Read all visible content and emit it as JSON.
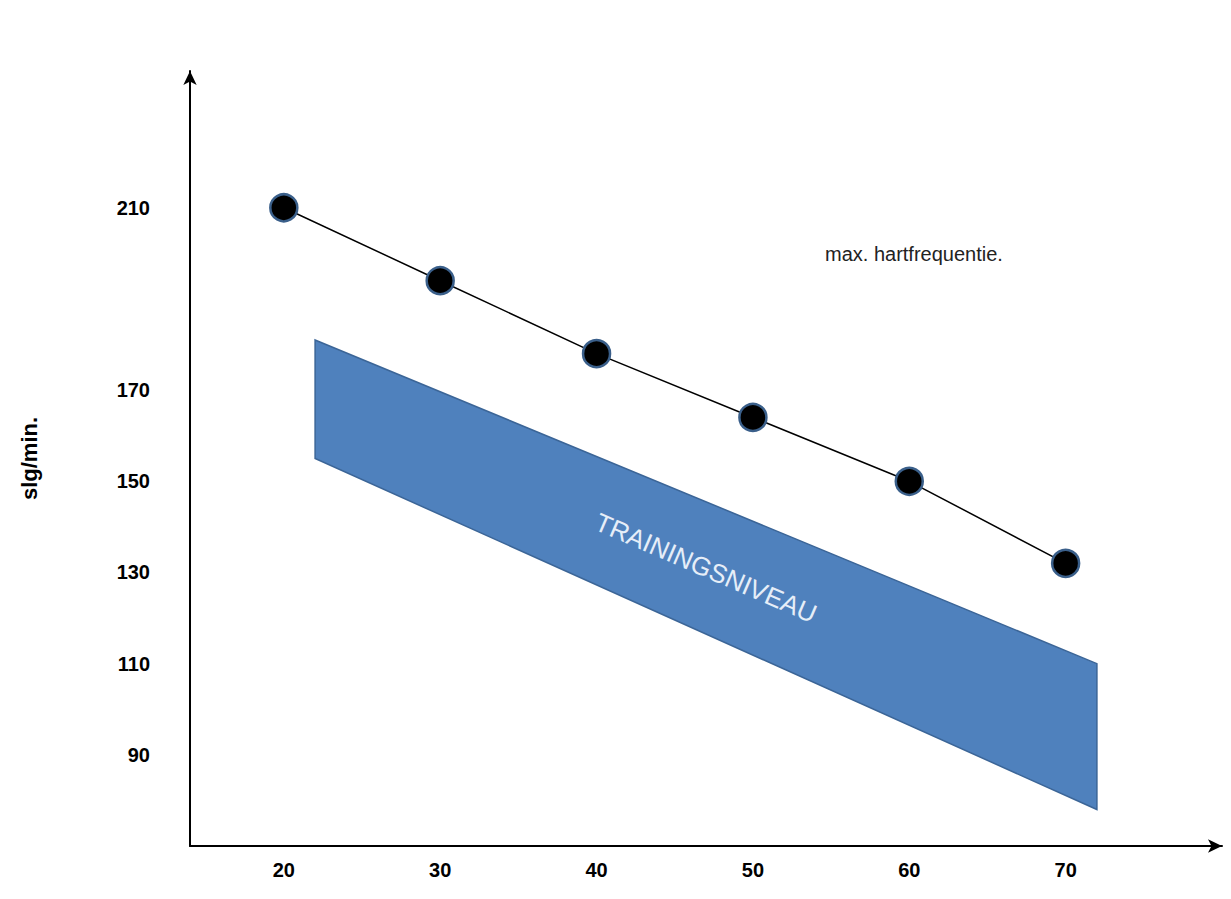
{
  "chart_data": {
    "type": "line",
    "x": [
      20,
      30,
      40,
      50,
      60,
      70
    ],
    "series": [
      {
        "name": "max. hartfrequentie.",
        "color": "#000000",
        "values": [
          210,
          194,
          178,
          164,
          150,
          132
        ],
        "marker": "circle"
      }
    ],
    "band": {
      "label": "TRAININGSNIVEAU",
      "color": "#4f81bd",
      "x": [
        22,
        72
      ],
      "upper": [
        181,
        110
      ],
      "lower": [
        155,
        78
      ]
    },
    "y_label": "slg/min.",
    "xlim": [
      14,
      80
    ],
    "ylim": [
      70,
      240
    ],
    "xticks": [
      20,
      30,
      40,
      50,
      60,
      70
    ],
    "yticks": [
      90,
      110,
      130,
      150,
      170,
      210
    ],
    "grid": false
  }
}
